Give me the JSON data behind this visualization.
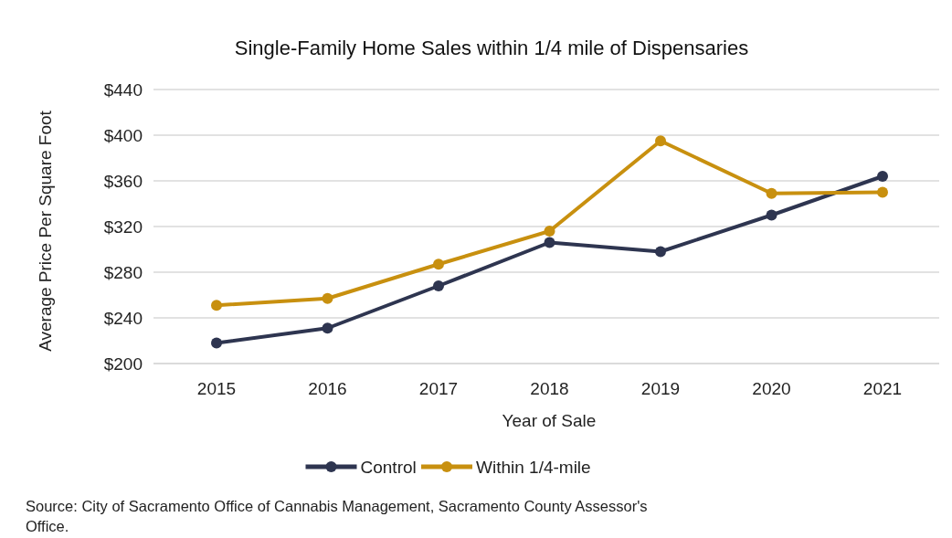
{
  "chart_data": {
    "type": "line",
    "title": "Single-Family  Home Sales within 1/4 mile of Dispensaries",
    "xlabel": "Year of Sale",
    "ylabel": "Average Price Per Square Foot",
    "categories": [
      "2015",
      "2016",
      "2017",
      "2018",
      "2019",
      "2020",
      "2021"
    ],
    "series": [
      {
        "name": "Control",
        "color": "#2e3550",
        "values": [
          218,
          231,
          268,
          306,
          298,
          330,
          364
        ]
      },
      {
        "name": "Within 1/4-mile",
        "color": "#c8900f",
        "values": [
          251,
          257,
          287,
          316,
          395,
          349,
          350
        ]
      }
    ],
    "ylim": [
      200,
      440
    ],
    "yticks": [
      {
        "value": 200,
        "label": "$200"
      },
      {
        "value": 240,
        "label": "$240"
      },
      {
        "value": 280,
        "label": "$280"
      },
      {
        "value": 320,
        "label": "$320"
      },
      {
        "value": 360,
        "label": "$360"
      },
      {
        "value": 400,
        "label": "$400"
      },
      {
        "value": 440,
        "label": "$440"
      }
    ],
    "grid": "y",
    "legend": "bottom",
    "marker": "circle",
    "line_style": "solid",
    "annotations": [
      "Source: City of Sacramento Office of Cannabis Management,  Sacramento County Assessor's Office."
    ]
  }
}
